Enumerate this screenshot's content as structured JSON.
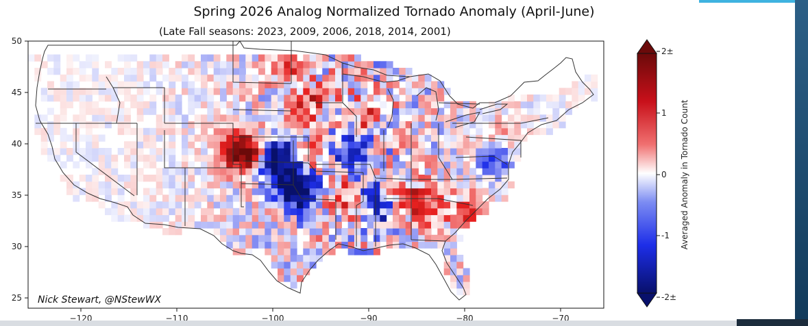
{
  "title": "Spring 2026 Analog Normalized Tornado Anomaly (April-June)",
  "subtitle": "(Late Fall seasons: 2023, 2009, 2006, 2018, 2014, 2001)",
  "credit": "Nick Stewart, @NStewWX",
  "map": {
    "region": "Contiguous United States",
    "lon_range": [
      -125,
      -66.5
    ],
    "lat_range": [
      24,
      50
    ],
    "x_ticks": [
      "−120",
      "−110",
      "−100",
      "−90",
      "−80",
      "−70"
    ],
    "y_ticks": [
      "50",
      "45",
      "40",
      "35",
      "30",
      "25"
    ]
  },
  "colorbar": {
    "label": "Averaged Anomaly in Tornado Count",
    "ticks": [
      "2±",
      "1",
      "0",
      "-1",
      "-2±"
    ],
    "range": [
      -2,
      2
    ],
    "colors": {
      "min": "#08106b",
      "neg": "#1d2ee8",
      "zero": "#ffffff",
      "pos": "#e8201f",
      "max": "#6b0a0a"
    }
  },
  "hotspots": [
    {
      "lon": -97.2,
      "lat": 35.3,
      "value": -1.5
    },
    {
      "lon": -98.0,
      "lat": 36.0,
      "value": -1.4
    },
    {
      "lon": -99.0,
      "lat": 38.8,
      "value": -1.3
    },
    {
      "lon": -100.2,
      "lat": 38.0,
      "value": -1.2
    },
    {
      "lon": -92.7,
      "lat": 38.5,
      "value": -1.0
    },
    {
      "lon": -91.2,
      "lat": 40.8,
      "value": -0.9
    },
    {
      "lon": -88.5,
      "lat": 33.2,
      "value": -0.9
    },
    {
      "lon": -77.5,
      "lat": 38.8,
      "value": -1.1
    },
    {
      "lon": -103.8,
      "lat": 39.4,
      "value": 1.5
    },
    {
      "lon": -102.5,
      "lat": 39.0,
      "value": 1.2
    },
    {
      "lon": -91.0,
      "lat": 42.3,
      "value": 1.1
    },
    {
      "lon": -98.4,
      "lat": 47.8,
      "value": 0.9
    },
    {
      "lon": -96.5,
      "lat": 44.0,
      "value": 0.9
    },
    {
      "lon": -86.6,
      "lat": 34.5,
      "value": 1.1
    },
    {
      "lon": -84.0,
      "lat": 34.0,
      "value": 0.8
    },
    {
      "lon": -79.7,
      "lat": 33.1,
      "value": 1.1
    },
    {
      "lon": -96.2,
      "lat": 38.6,
      "value": 0.7
    },
    {
      "lon": -93.0,
      "lat": 35.2,
      "value": 0.8
    },
    {
      "lon": -77.0,
      "lat": 40.5,
      "value": 0.6
    },
    {
      "lon": -90.0,
      "lat": 35.0,
      "value": -0.7
    }
  ]
}
